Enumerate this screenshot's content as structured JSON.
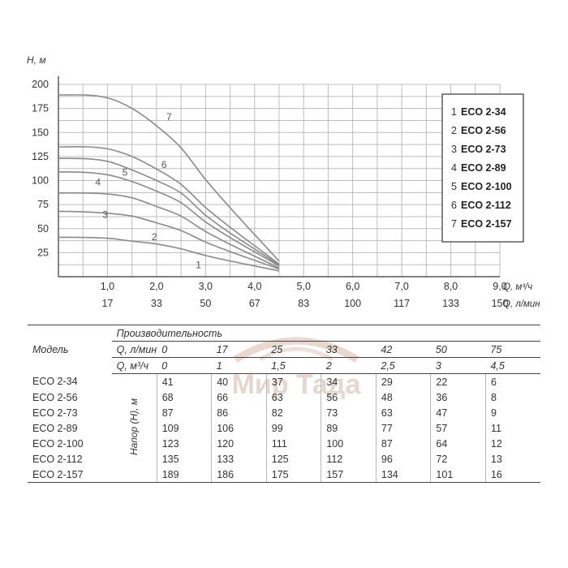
{
  "chart_data": {
    "type": "line",
    "ylabel": "H, м",
    "xlabel_primary": "Q, м³/ч",
    "xlabel_secondary": "Q, л/мин",
    "yticks": [
      25,
      50,
      75,
      100,
      125,
      150,
      175,
      200
    ],
    "ylim": [
      0,
      200
    ],
    "xlim": [
      0,
      9
    ],
    "xticks_primary": [
      "1,0",
      "2,0",
      "3,0",
      "4,0",
      "5,0",
      "6,0",
      "7,0",
      "8,0",
      "9,0"
    ],
    "xticks_secondary": [
      "17",
      "33",
      "50",
      "67",
      "83",
      "100",
      "117",
      "133",
      "150"
    ],
    "grid": true,
    "legend_position": "right",
    "series": [
      {
        "name": "ECO 2-34",
        "number": "1",
        "x": [
          0,
          1,
          1.5,
          2,
          2.5,
          3,
          4.5
        ],
        "y": [
          41,
          40,
          37,
          34,
          29,
          22,
          6
        ]
      },
      {
        "name": "ECO 2-56",
        "number": "2",
        "x": [
          0,
          1,
          1.5,
          2,
          2.5,
          3,
          4.5
        ],
        "y": [
          68,
          66,
          63,
          56,
          48,
          36,
          8
        ]
      },
      {
        "name": "ECO 2-73",
        "number": "3",
        "x": [
          0,
          1,
          1.5,
          2,
          2.5,
          3,
          4.5
        ],
        "y": [
          87,
          86,
          82,
          73,
          63,
          47,
          9
        ]
      },
      {
        "name": "ECO 2-89",
        "number": "4",
        "x": [
          0,
          1,
          1.5,
          2,
          2.5,
          3,
          4.5
        ],
        "y": [
          109,
          106,
          99,
          89,
          77,
          57,
          11
        ]
      },
      {
        "name": "ECO 2-100",
        "number": "5",
        "x": [
          0,
          1,
          1.5,
          2,
          2.5,
          3,
          4.5
        ],
        "y": [
          123,
          120,
          111,
          100,
          87,
          64,
          12
        ]
      },
      {
        "name": "ECO 2-112",
        "number": "6",
        "x": [
          0,
          1,
          1.5,
          2,
          2.5,
          3,
          4.5
        ],
        "y": [
          135,
          133,
          125,
          112,
          96,
          72,
          13
        ]
      },
      {
        "name": "ECO 2-157",
        "number": "7",
        "x": [
          0,
          1,
          1.5,
          2,
          2.5,
          3,
          4.5
        ],
        "y": [
          189,
          186,
          175,
          157,
          134,
          101,
          16
        ]
      }
    ],
    "curve_labels": [
      {
        "text": "1",
        "x": 2.8,
        "y": 9
      },
      {
        "text": "2",
        "x": 1.9,
        "y": 38
      },
      {
        "text": "3",
        "x": 0.9,
        "y": 61
      },
      {
        "text": "4",
        "x": 0.75,
        "y": 95
      },
      {
        "text": "5",
        "x": 1.3,
        "y": 105
      },
      {
        "text": "6",
        "x": 2.1,
        "y": 113
      },
      {
        "text": "7",
        "x": 2.2,
        "y": 163
      }
    ]
  },
  "table": {
    "model_header": "Модель",
    "performance_header": "Производительность",
    "q_lmin_label": "Q, л/мин",
    "q_m3h_label": "Q, м³/ч",
    "head_label": "Напор (H), м",
    "q_lmin": [
      "0",
      "17",
      "25",
      "33",
      "42",
      "50",
      "75"
    ],
    "q_m3h": [
      "0",
      "1",
      "1,5",
      "2",
      "2,5",
      "3",
      "4,5"
    ],
    "rows": [
      {
        "model": "ECO 2-34",
        "values": [
          "41",
          "40",
          "37",
          "34",
          "29",
          "22",
          "6"
        ]
      },
      {
        "model": "ECO 2-56",
        "values": [
          "68",
          "66",
          "63",
          "56",
          "48",
          "36",
          "8"
        ]
      },
      {
        "model": "ECO 2-73",
        "values": [
          "87",
          "86",
          "82",
          "73",
          "63",
          "47",
          "9"
        ]
      },
      {
        "model": "ECO 2-89",
        "values": [
          "109",
          "106",
          "99",
          "89",
          "77",
          "57",
          "11"
        ]
      },
      {
        "model": "ECO 2-100",
        "values": [
          "123",
          "120",
          "111",
          "100",
          "87",
          "64",
          "12"
        ]
      },
      {
        "model": "ECO 2-112",
        "values": [
          "135",
          "133",
          "125",
          "112",
          "96",
          "72",
          "13"
        ]
      },
      {
        "model": "ECO 2-157",
        "values": [
          "189",
          "186",
          "175",
          "157",
          "134",
          "101",
          "16"
        ]
      }
    ]
  },
  "watermark_text": "Мир Тада",
  "colors": {
    "curve": "#8a8a8a",
    "grid": "#bdbdbd",
    "axis": "#333333",
    "watermark": "#c9a590"
  }
}
